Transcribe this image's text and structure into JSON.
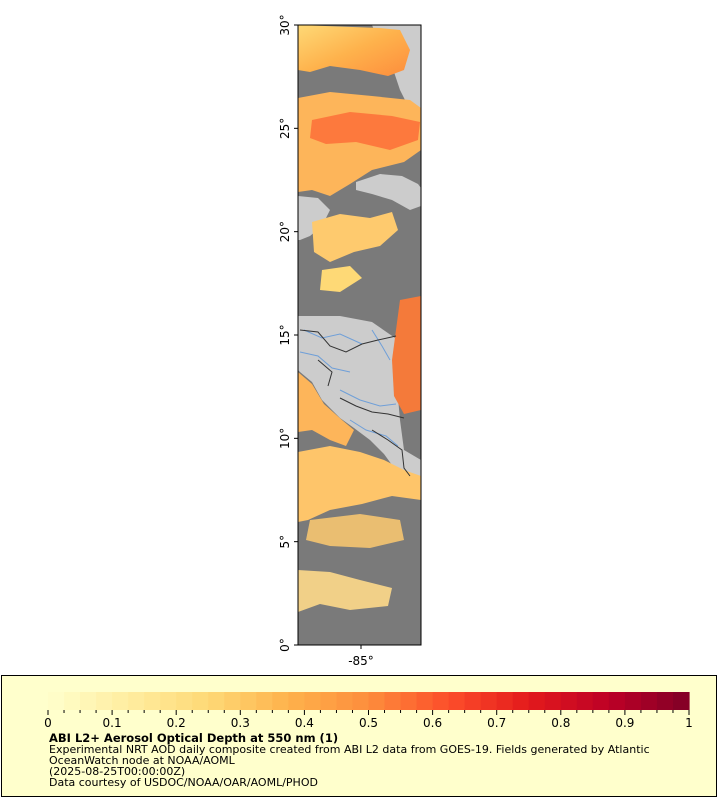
{
  "map": {
    "lat_range": [
      0,
      30
    ],
    "lon_center": -85,
    "lat_ticks": [
      "0°",
      "5°",
      "10°",
      "15°",
      "20°",
      "25°",
      "30°"
    ],
    "lon_ticks": [
      "-85°"
    ],
    "colors": {
      "no_data": "#7a7a7a",
      "land": "#cccccc",
      "rivers": "#6f9fd8",
      "borders": "#333333"
    }
  },
  "legend": {
    "title": "ABI L2+ Aerosol Optical Depth at 550 nm (1)",
    "tick_labels": [
      "0",
      "0.1",
      "0.2",
      "0.3",
      "0.4",
      "0.5",
      "0.6",
      "0.7",
      "0.8",
      "0.9",
      "1"
    ],
    "range": [
      0,
      1
    ],
    "palette": [
      "#ffffcc",
      "#ffeda0",
      "#fed976",
      "#feb24c",
      "#fd8d3c",
      "#fc4e2a",
      "#e31a1c",
      "#bd0026",
      "#800026"
    ]
  },
  "caption": {
    "line1": "Experimental NRT AOD daily composite created from ABI L2 data from GOES-19. Fields generated by Atlantic",
    "line2": "OceanWatch node at NOAA/AOML",
    "line3": "(2025-08-25T00:00:00Z)",
    "line4": "Data courtesy of USDOC/NOAA/OAR/AOML/PHOD"
  }
}
